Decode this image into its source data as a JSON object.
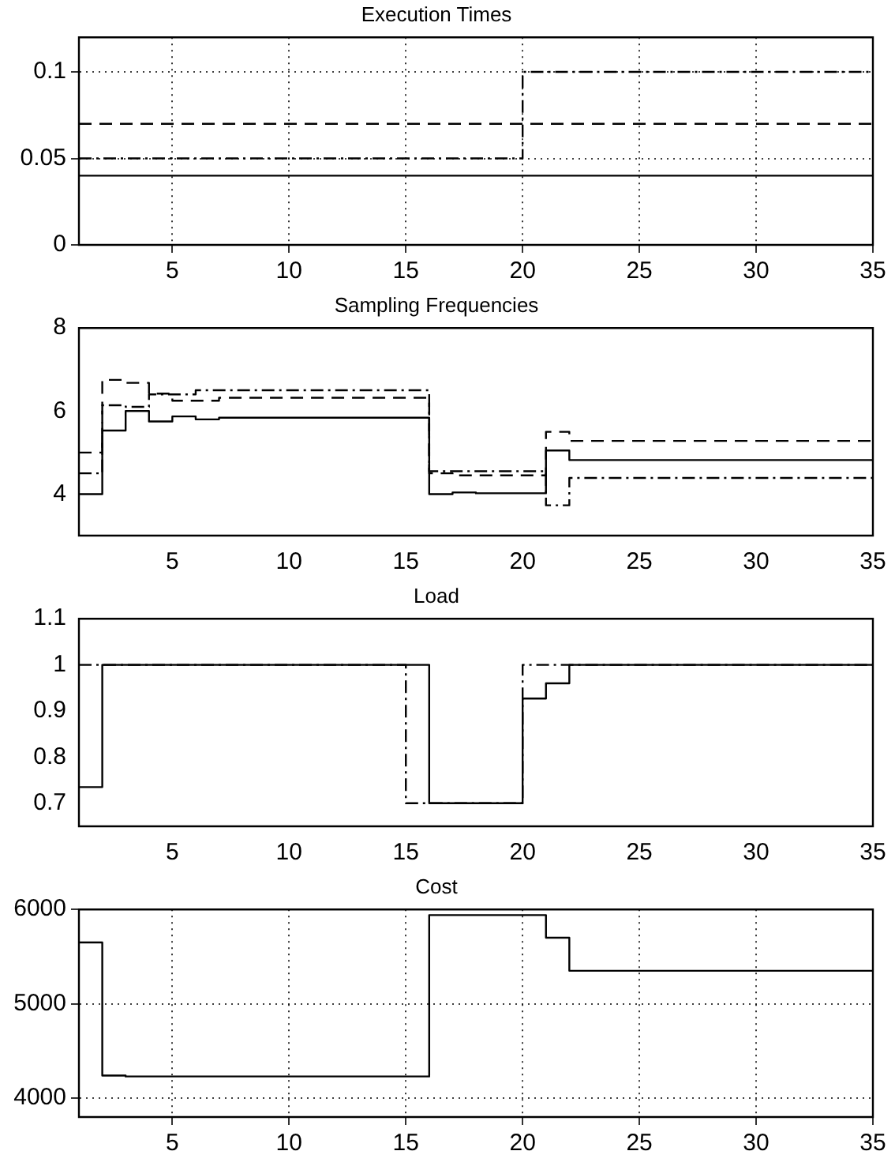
{
  "chart_data": [
    {
      "type": "step",
      "title": "Execution Times",
      "xlim": [
        1,
        35
      ],
      "xticks": [
        5,
        10,
        15,
        20,
        25,
        30,
        35
      ],
      "ylim": [
        0,
        0.12
      ],
      "yticks": [
        0,
        0.05,
        0.1
      ],
      "grid": true,
      "marker": "none",
      "series": [
        {
          "color": "#000000",
          "line_style": "solid",
          "x": [
            1,
            35
          ],
          "values": [
            0.04,
            0.04
          ]
        },
        {
          "color": "#000000",
          "line_style": "dashed",
          "x": [
            1,
            35
          ],
          "values": [
            0.07,
            0.07
          ]
        },
        {
          "color": "#000000",
          "line_style": "dotted",
          "x": [
            1,
            20,
            35
          ],
          "values": [
            0.05,
            0.1,
            0.1
          ]
        }
      ]
    },
    {
      "type": "step",
      "title": "Sampling Frequencies",
      "xlim": [
        1,
        35
      ],
      "xticks": [
        5,
        10,
        15,
        20,
        25,
        30,
        35
      ],
      "ylim": [
        3,
        8
      ],
      "yticks": [
        4,
        6,
        8
      ],
      "grid": false,
      "marker": "none",
      "series": [
        {
          "color": "#000000",
          "line_style": "solid",
          "x": [
            1,
            2,
            3,
            4,
            5,
            6,
            7,
            16,
            17,
            18,
            21,
            22,
            35
          ],
          "values": [
            4.0,
            5.53,
            6.0,
            5.75,
            5.87,
            5.8,
            5.84,
            4.0,
            4.04,
            4.02,
            5.05,
            4.82,
            4.82
          ]
        },
        {
          "color": "#000000",
          "line_style": "dashed",
          "x": [
            1,
            2,
            3,
            4,
            5,
            7,
            16,
            17,
            21,
            22,
            35
          ],
          "values": [
            5.0,
            6.75,
            6.68,
            6.42,
            6.25,
            6.32,
            4.5,
            4.45,
            5.5,
            5.28,
            5.28
          ]
        },
        {
          "color": "#000000",
          "line_style": "dotted",
          "x": [
            1,
            2,
            3,
            4,
            6,
            16,
            21,
            22,
            35
          ],
          "values": [
            4.5,
            6.14,
            6.1,
            6.4,
            6.5,
            4.55,
            3.73,
            4.39,
            4.39
          ]
        }
      ]
    },
    {
      "type": "step",
      "title": "Load",
      "xlim": [
        1,
        35
      ],
      "xticks": [
        5,
        10,
        15,
        20,
        25,
        30,
        35
      ],
      "ylim": [
        0.65,
        1.1
      ],
      "yticks": [
        0.7,
        0.8,
        0.9,
        1,
        1.1
      ],
      "grid": false,
      "marker": "none",
      "series": [
        {
          "color": "#000000",
          "line_style": "solid",
          "x": [
            1,
            2,
            16,
            20,
            21,
            22,
            35
          ],
          "values": [
            0.735,
            1,
            0.7,
            0.927,
            0.96,
            1,
            1
          ]
        },
        {
          "color": "#000000",
          "line_style": "dotted",
          "x": [
            1,
            15,
            20,
            35
          ],
          "values": [
            1,
            0.7,
            1,
            1
          ]
        }
      ]
    },
    {
      "type": "step",
      "title": "Cost",
      "xlim": [
        1,
        35
      ],
      "xticks": [
        5,
        10,
        15,
        20,
        25,
        30,
        35
      ],
      "ylim": [
        3800,
        6000
      ],
      "yticks": [
        4000,
        5000,
        6000
      ],
      "grid": true,
      "marker": "none",
      "series": [
        {
          "color": "#000000",
          "line_style": "solid",
          "x": [
            1,
            2,
            3,
            16,
            21,
            22,
            35
          ],
          "values": [
            5650,
            4240,
            4230,
            5940,
            5700,
            5350,
            5350
          ]
        }
      ]
    }
  ]
}
